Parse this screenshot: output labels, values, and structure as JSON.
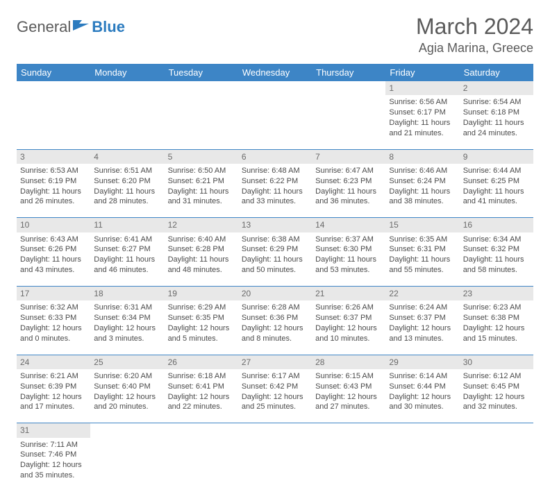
{
  "logo": {
    "general": "General",
    "blue": "Blue"
  },
  "title": "March 2024",
  "location": "Agia Marina, Greece",
  "colors": {
    "header_bg": "#3d85c6",
    "header_text": "#ffffff",
    "daynum_bg": "#e8e8e8",
    "border": "#3d85c6",
    "text": "#4a4a4a",
    "accent": "#2b7bbf"
  },
  "weekdays": [
    "Sunday",
    "Monday",
    "Tuesday",
    "Wednesday",
    "Thursday",
    "Friday",
    "Saturday"
  ],
  "weeks": [
    [
      null,
      null,
      null,
      null,
      null,
      {
        "n": "1",
        "sr": "Sunrise: 6:56 AM",
        "ss": "Sunset: 6:17 PM",
        "dl": "Daylight: 11 hours and 21 minutes."
      },
      {
        "n": "2",
        "sr": "Sunrise: 6:54 AM",
        "ss": "Sunset: 6:18 PM",
        "dl": "Daylight: 11 hours and 24 minutes."
      }
    ],
    [
      {
        "n": "3",
        "sr": "Sunrise: 6:53 AM",
        "ss": "Sunset: 6:19 PM",
        "dl": "Daylight: 11 hours and 26 minutes."
      },
      {
        "n": "4",
        "sr": "Sunrise: 6:51 AM",
        "ss": "Sunset: 6:20 PM",
        "dl": "Daylight: 11 hours and 28 minutes."
      },
      {
        "n": "5",
        "sr": "Sunrise: 6:50 AM",
        "ss": "Sunset: 6:21 PM",
        "dl": "Daylight: 11 hours and 31 minutes."
      },
      {
        "n": "6",
        "sr": "Sunrise: 6:48 AM",
        "ss": "Sunset: 6:22 PM",
        "dl": "Daylight: 11 hours and 33 minutes."
      },
      {
        "n": "7",
        "sr": "Sunrise: 6:47 AM",
        "ss": "Sunset: 6:23 PM",
        "dl": "Daylight: 11 hours and 36 minutes."
      },
      {
        "n": "8",
        "sr": "Sunrise: 6:46 AM",
        "ss": "Sunset: 6:24 PM",
        "dl": "Daylight: 11 hours and 38 minutes."
      },
      {
        "n": "9",
        "sr": "Sunrise: 6:44 AM",
        "ss": "Sunset: 6:25 PM",
        "dl": "Daylight: 11 hours and 41 minutes."
      }
    ],
    [
      {
        "n": "10",
        "sr": "Sunrise: 6:43 AM",
        "ss": "Sunset: 6:26 PM",
        "dl": "Daylight: 11 hours and 43 minutes."
      },
      {
        "n": "11",
        "sr": "Sunrise: 6:41 AM",
        "ss": "Sunset: 6:27 PM",
        "dl": "Daylight: 11 hours and 46 minutes."
      },
      {
        "n": "12",
        "sr": "Sunrise: 6:40 AM",
        "ss": "Sunset: 6:28 PM",
        "dl": "Daylight: 11 hours and 48 minutes."
      },
      {
        "n": "13",
        "sr": "Sunrise: 6:38 AM",
        "ss": "Sunset: 6:29 PM",
        "dl": "Daylight: 11 hours and 50 minutes."
      },
      {
        "n": "14",
        "sr": "Sunrise: 6:37 AM",
        "ss": "Sunset: 6:30 PM",
        "dl": "Daylight: 11 hours and 53 minutes."
      },
      {
        "n": "15",
        "sr": "Sunrise: 6:35 AM",
        "ss": "Sunset: 6:31 PM",
        "dl": "Daylight: 11 hours and 55 minutes."
      },
      {
        "n": "16",
        "sr": "Sunrise: 6:34 AM",
        "ss": "Sunset: 6:32 PM",
        "dl": "Daylight: 11 hours and 58 minutes."
      }
    ],
    [
      {
        "n": "17",
        "sr": "Sunrise: 6:32 AM",
        "ss": "Sunset: 6:33 PM",
        "dl": "Daylight: 12 hours and 0 minutes."
      },
      {
        "n": "18",
        "sr": "Sunrise: 6:31 AM",
        "ss": "Sunset: 6:34 PM",
        "dl": "Daylight: 12 hours and 3 minutes."
      },
      {
        "n": "19",
        "sr": "Sunrise: 6:29 AM",
        "ss": "Sunset: 6:35 PM",
        "dl": "Daylight: 12 hours and 5 minutes."
      },
      {
        "n": "20",
        "sr": "Sunrise: 6:28 AM",
        "ss": "Sunset: 6:36 PM",
        "dl": "Daylight: 12 hours and 8 minutes."
      },
      {
        "n": "21",
        "sr": "Sunrise: 6:26 AM",
        "ss": "Sunset: 6:37 PM",
        "dl": "Daylight: 12 hours and 10 minutes."
      },
      {
        "n": "22",
        "sr": "Sunrise: 6:24 AM",
        "ss": "Sunset: 6:37 PM",
        "dl": "Daylight: 12 hours and 13 minutes."
      },
      {
        "n": "23",
        "sr": "Sunrise: 6:23 AM",
        "ss": "Sunset: 6:38 PM",
        "dl": "Daylight: 12 hours and 15 minutes."
      }
    ],
    [
      {
        "n": "24",
        "sr": "Sunrise: 6:21 AM",
        "ss": "Sunset: 6:39 PM",
        "dl": "Daylight: 12 hours and 17 minutes."
      },
      {
        "n": "25",
        "sr": "Sunrise: 6:20 AM",
        "ss": "Sunset: 6:40 PM",
        "dl": "Daylight: 12 hours and 20 minutes."
      },
      {
        "n": "26",
        "sr": "Sunrise: 6:18 AM",
        "ss": "Sunset: 6:41 PM",
        "dl": "Daylight: 12 hours and 22 minutes."
      },
      {
        "n": "27",
        "sr": "Sunrise: 6:17 AM",
        "ss": "Sunset: 6:42 PM",
        "dl": "Daylight: 12 hours and 25 minutes."
      },
      {
        "n": "28",
        "sr": "Sunrise: 6:15 AM",
        "ss": "Sunset: 6:43 PM",
        "dl": "Daylight: 12 hours and 27 minutes."
      },
      {
        "n": "29",
        "sr": "Sunrise: 6:14 AM",
        "ss": "Sunset: 6:44 PM",
        "dl": "Daylight: 12 hours and 30 minutes."
      },
      {
        "n": "30",
        "sr": "Sunrise: 6:12 AM",
        "ss": "Sunset: 6:45 PM",
        "dl": "Daylight: 12 hours and 32 minutes."
      }
    ],
    [
      {
        "n": "31",
        "sr": "Sunrise: 7:11 AM",
        "ss": "Sunset: 7:46 PM",
        "dl": "Daylight: 12 hours and 35 minutes."
      },
      null,
      null,
      null,
      null,
      null,
      null
    ]
  ]
}
